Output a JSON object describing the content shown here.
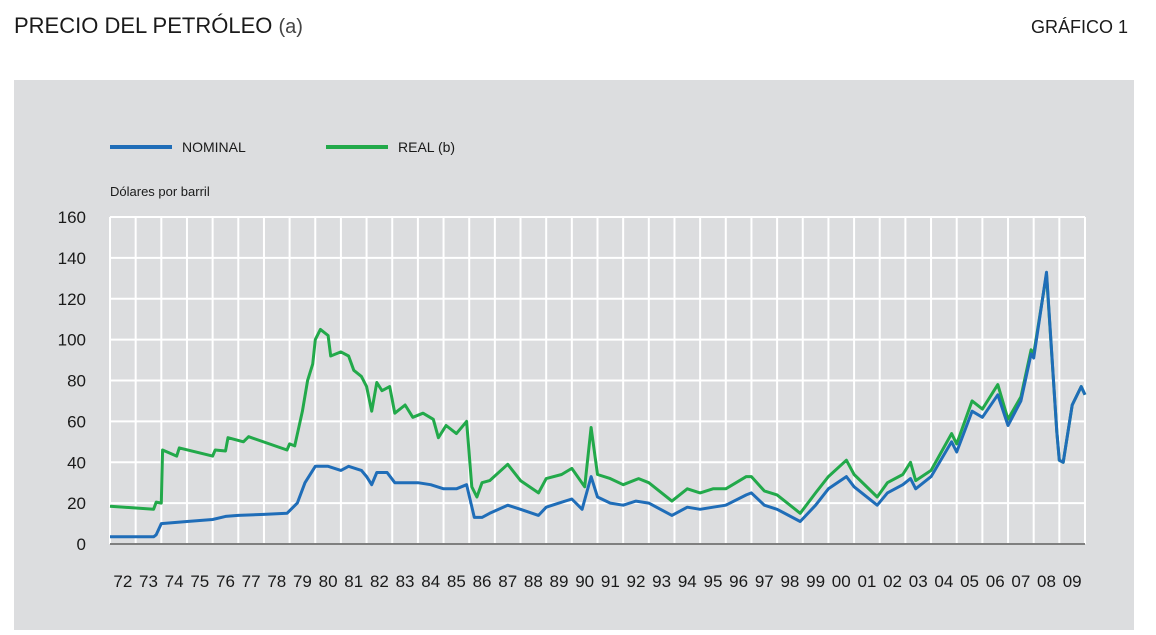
{
  "chart_data": {
    "type": "line",
    "title": "PRECIO DEL PETRÓLEO",
    "title_note": "(a)",
    "figure_label": "GRÁFICO 1",
    "y_label": "Dólares por barril",
    "xlim": [
      1972,
      2010
    ],
    "ylim": [
      0,
      160
    ],
    "yticks": [
      0,
      20,
      40,
      60,
      80,
      100,
      120,
      140,
      160
    ],
    "xticks": [
      {
        "value": 1972,
        "label": "72"
      },
      {
        "value": 1973,
        "label": "73"
      },
      {
        "value": 1974,
        "label": "74"
      },
      {
        "value": 1975,
        "label": "75"
      },
      {
        "value": 1976,
        "label": "76"
      },
      {
        "value": 1977,
        "label": "77"
      },
      {
        "value": 1978,
        "label": "78"
      },
      {
        "value": 1979,
        "label": "79"
      },
      {
        "value": 1980,
        "label": "80"
      },
      {
        "value": 1981,
        "label": "81"
      },
      {
        "value": 1982,
        "label": "82"
      },
      {
        "value": 1983,
        "label": "83"
      },
      {
        "value": 1984,
        "label": "84"
      },
      {
        "value": 1985,
        "label": "85"
      },
      {
        "value": 1986,
        "label": "86"
      },
      {
        "value": 1987,
        "label": "87"
      },
      {
        "value": 1988,
        "label": "88"
      },
      {
        "value": 1989,
        "label": "89"
      },
      {
        "value": 1990,
        "label": "90"
      },
      {
        "value": 1991,
        "label": "91"
      },
      {
        "value": 1992,
        "label": "92"
      },
      {
        "value": 1993,
        "label": "93"
      },
      {
        "value": 1994,
        "label": "94"
      },
      {
        "value": 1995,
        "label": "95"
      },
      {
        "value": 1996,
        "label": "96"
      },
      {
        "value": 1997,
        "label": "97"
      },
      {
        "value": 1998,
        "label": "98"
      },
      {
        "value": 1999,
        "label": "99"
      },
      {
        "value": 2000,
        "label": "00"
      },
      {
        "value": 2001,
        "label": "01"
      },
      {
        "value": 2002,
        "label": "02"
      },
      {
        "value": 2003,
        "label": "03"
      },
      {
        "value": 2004,
        "label": "04"
      },
      {
        "value": 2005,
        "label": "05"
      },
      {
        "value": 2006,
        "label": "06"
      },
      {
        "value": 2007,
        "label": "07"
      },
      {
        "value": 2008,
        "label": "08"
      },
      {
        "value": 2009,
        "label": "09"
      }
    ],
    "grid": true,
    "series": [
      {
        "name": "REAL (b)",
        "color": "#22a94a",
        "x": [
          1972.0,
          1973.7,
          1973.8,
          1974.0,
          1974.05,
          1974.6,
          1974.7,
          1976.0,
          1976.1,
          1976.5,
          1976.6,
          1977.2,
          1977.4,
          1978.9,
          1979.0,
          1979.2,
          1979.5,
          1979.7,
          1979.9,
          1980.0,
          1980.2,
          1980.5,
          1980.6,
          1981.0,
          1981.3,
          1981.5,
          1981.8,
          1982.0,
          1982.2,
          1982.4,
          1982.6,
          1982.9,
          1983.1,
          1983.5,
          1983.8,
          1984.2,
          1984.6,
          1984.8,
          1985.1,
          1985.5,
          1985.9,
          1986.1,
          1986.3,
          1986.5,
          1986.8,
          1987.5,
          1988.0,
          1988.7,
          1989.0,
          1989.6,
          1990.0,
          1990.5,
          1990.75,
          1991.0,
          1991.5,
          1992.0,
          1992.6,
          1993.0,
          1993.9,
          1994.5,
          1995.0,
          1995.5,
          1996.0,
          1996.8,
          1997.0,
          1997.5,
          1998.0,
          1998.9,
          1999.5,
          2000.0,
          2000.7,
          2001.0,
          2001.9,
          2002.3,
          2002.9,
          2003.2,
          2003.4,
          2004.0,
          2004.8,
          2005.0,
          2005.6,
          2006.0,
          2006.6,
          2007.0,
          2007.5,
          2007.9,
          2008.0,
          2008.5,
          2008.9,
          2009.0,
          2009.15,
          2009.5,
          2009.85,
          2010.0
        ],
        "values": [
          18.5,
          17,
          20.5,
          20,
          46,
          43,
          47,
          43,
          46,
          45.5,
          52,
          50,
          52.5,
          46,
          49,
          48,
          65,
          80,
          88,
          100,
          105,
          102,
          92,
          94,
          92,
          85,
          82,
          77,
          65,
          79,
          75,
          77,
          64,
          68,
          62,
          64,
          61,
          52,
          58,
          54,
          60,
          28,
          23,
          30,
          31,
          39,
          31,
          25,
          32,
          34,
          37,
          28,
          57,
          34,
          32,
          29,
          32,
          30,
          21,
          27,
          25,
          27,
          27,
          33,
          33,
          26,
          24,
          15,
          25,
          33,
          41,
          34,
          23,
          30,
          34,
          40,
          31,
          36,
          54,
          49,
          70,
          66,
          78,
          61,
          72,
          95,
          93,
          132,
          55,
          41,
          40,
          68,
          77,
          73
        ]
      },
      {
        "name": "NOMINAL",
        "color": "#1f6db8",
        "x": [
          1972.0,
          1973.7,
          1973.8,
          1974.0,
          1975.0,
          1976.0,
          1976.5,
          1977.0,
          1978.0,
          1978.9,
          1979.3,
          1979.6,
          1980.0,
          1980.5,
          1981.0,
          1981.3,
          1981.8,
          1982.0,
          1982.2,
          1982.4,
          1982.8,
          1983.1,
          1983.5,
          1984.0,
          1984.5,
          1985.0,
          1985.5,
          1985.9,
          1986.2,
          1986.5,
          1986.8,
          1987.5,
          1988.0,
          1988.7,
          1989.0,
          1989.5,
          1990.0,
          1990.4,
          1990.75,
          1991.0,
          1991.5,
          1992.0,
          1992.5,
          1993.0,
          1993.9,
          1994.5,
          1995.0,
          1995.5,
          1996.0,
          1996.8,
          1997.0,
          1997.5,
          1998.0,
          1998.9,
          1999.5,
          2000.0,
          2000.7,
          2001.0,
          2001.9,
          2002.3,
          2002.9,
          2003.2,
          2003.4,
          2004.0,
          2004.8,
          2005.0,
          2005.6,
          2006.0,
          2006.6,
          2007.0,
          2007.5,
          2007.9,
          2008.0,
          2008.5,
          2008.9,
          2009.0,
          2009.15,
          2009.5,
          2009.85,
          2010.0
        ],
        "values": [
          3.5,
          3.5,
          4.5,
          10,
          11,
          12,
          13.5,
          14,
          14.5,
          15,
          20,
          30,
          38,
          38,
          36,
          38,
          36,
          33,
          29,
          35,
          35,
          30,
          30,
          30,
          29,
          27,
          27,
          29,
          13,
          13,
          15,
          19,
          17,
          14,
          18,
          20,
          22,
          17,
          33,
          23,
          20,
          19,
          21,
          20,
          14,
          18,
          17,
          18,
          19,
          24,
          25,
          19,
          17,
          11,
          19,
          27,
          33,
          28,
          19,
          25,
          29,
          32,
          27,
          33,
          50,
          45,
          65,
          62,
          73,
          58,
          70,
          93,
          91,
          133,
          55,
          41,
          40,
          68,
          77,
          73
        ]
      }
    ]
  }
}
